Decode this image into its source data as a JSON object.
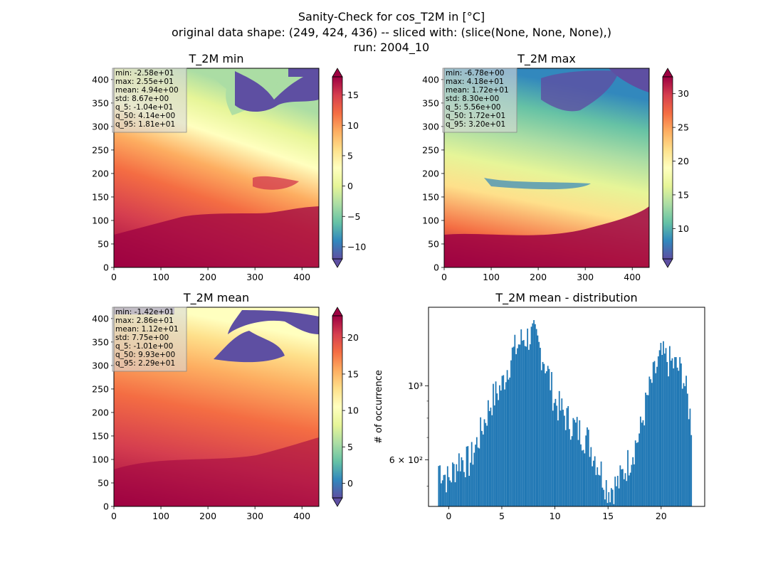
{
  "figure": {
    "suptitle_lines": [
      "Sanity-Check for cos_T2M in [°C]",
      "original data shape: (249, 424, 436) -- sliced with: (slice(None, None, None),)",
      "run: 2004_10"
    ]
  },
  "chart_data": [
    {
      "type": "heatmap",
      "title": "T_2M min",
      "colormap": "Spectral_r",
      "colorbar_range": [
        -12,
        18
      ],
      "colorbar_ticks": [
        "−10",
        "−5",
        "0",
        "5",
        "10",
        "15"
      ],
      "colorbar_tick_values": [
        -10,
        -5,
        0,
        5,
        10,
        15
      ],
      "x_ticks": [
        "0",
        "100",
        "200",
        "300",
        "400"
      ],
      "y_ticks": [
        "0",
        "50",
        "100",
        "150",
        "200",
        "250",
        "300",
        "350",
        "400"
      ],
      "xlim": [
        0,
        436
      ],
      "ylim": [
        0,
        424
      ],
      "stats": [
        "min: -2.58e+01",
        "max: 2.55e+01",
        "mean: 4.94e+00",
        "std: 8.67e+00",
        "q_5: -1.04e+01",
        "q_50: 4.14e+00",
        "q_95: 1.81e+01"
      ]
    },
    {
      "type": "heatmap",
      "title": "T_2M max",
      "colormap": "Spectral_r",
      "colorbar_range": [
        5.5,
        32.5
      ],
      "colorbar_ticks": [
        "10",
        "15",
        "20",
        "25",
        "30"
      ],
      "colorbar_tick_values": [
        10,
        15,
        20,
        25,
        30
      ],
      "x_ticks": [
        "0",
        "100",
        "200",
        "300",
        "400"
      ],
      "y_ticks": [
        "0",
        "50",
        "100",
        "150",
        "200",
        "250",
        "300",
        "350",
        "400"
      ],
      "xlim": [
        0,
        436
      ],
      "ylim": [
        0,
        424
      ],
      "stats": [
        "min: -6.78e+00",
        "max: 4.18e+01",
        "mean: 1.72e+01",
        "std: 8.30e+00",
        "q_5: 5.56e+00",
        "q_50: 1.72e+01",
        "q_95: 3.20e+01"
      ]
    },
    {
      "type": "heatmap",
      "title": "T_2M mean",
      "colormap": "Spectral_r",
      "colorbar_range": [
        -2,
        23
      ],
      "colorbar_ticks": [
        "0",
        "5",
        "10",
        "15",
        "20"
      ],
      "colorbar_tick_values": [
        0,
        5,
        10,
        15,
        20
      ],
      "x_ticks": [
        "0",
        "100",
        "200",
        "300",
        "400"
      ],
      "y_ticks": [
        "0",
        "50",
        "100",
        "150",
        "200",
        "250",
        "300",
        "350",
        "400"
      ],
      "xlim": [
        0,
        436
      ],
      "ylim": [
        0,
        424
      ],
      "stats": [
        "min: -1.42e+01",
        "max: 2.86e+01",
        "mean: 1.12e+01",
        "std: 7.75e+00",
        "q_5: -1.01e+00",
        "q_50: 9.93e+00",
        "q_95: 2.29e+01"
      ]
    },
    {
      "type": "bar",
      "title": "T_2M mean - distribution",
      "ylabel": "# of occurrence",
      "yscale": "log",
      "xlim": [
        -1.9,
        24.1
      ],
      "ylim": [
        435,
        1720
      ],
      "x_ticks": [
        "0",
        "5",
        "10",
        "15",
        "20"
      ],
      "x_tick_values": [
        0,
        5,
        10,
        15,
        20
      ],
      "y_ticks_major": [
        "10³",
        "6 × 10²"
      ],
      "y_tick_values_major": [
        1000,
        600
      ],
      "y_tick_values_minor": [
        500,
        700,
        800,
        900
      ],
      "color": "#1f77b4",
      "bins": [
        [
          -1,
          580
        ],
        [
          0,
          520
        ],
        [
          1,
          605
        ],
        [
          2,
          590
        ],
        [
          3,
          720
        ],
        [
          4,
          900
        ],
        [
          5,
          1000
        ],
        [
          6,
          1250
        ],
        [
          7,
          1390
        ],
        [
          8,
          1420
        ],
        [
          9,
          1200
        ],
        [
          10,
          900
        ],
        [
          11,
          810
        ],
        [
          12,
          745
        ],
        [
          13,
          700
        ],
        [
          14,
          590
        ],
        [
          15,
          490
        ],
        [
          16,
          510
        ],
        [
          17,
          600
        ],
        [
          18,
          720
        ],
        [
          19,
          1000
        ],
        [
          20,
          1230
        ],
        [
          21,
          1170
        ],
        [
          22,
          1100
        ],
        [
          22.9,
          750
        ]
      ]
    }
  ]
}
